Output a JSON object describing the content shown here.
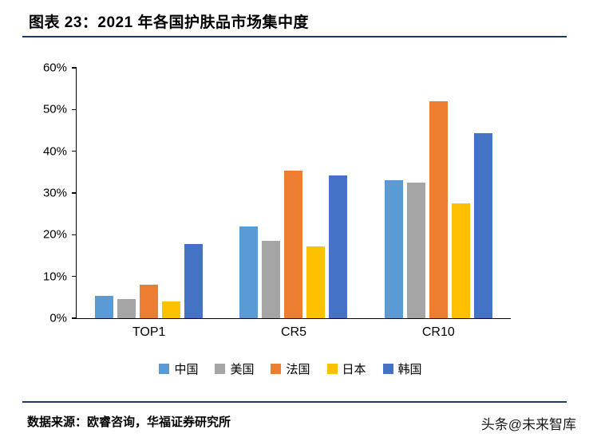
{
  "page": {
    "title": "图表 23：2021 年各国护肤品市场集中度",
    "source_label": "数据来源：",
    "source_text": "欧睿咨询，华福证券研究所",
    "watermark": "头条@未来智库"
  },
  "colors": {
    "rule_navy": "#1F3864",
    "axis": "#000000",
    "background": "#FFFFFF"
  },
  "chart_data": {
    "type": "bar",
    "title": "2021 年各国护肤品市场集中度",
    "categories": [
      "TOP1",
      "CR5",
      "CR10"
    ],
    "series": [
      {
        "name": "中国",
        "color": "#5B9BD5",
        "values": [
          5.3,
          22.0,
          33.0
        ]
      },
      {
        "name": "美国",
        "color": "#A5A5A5",
        "values": [
          4.6,
          18.5,
          32.4
        ]
      },
      {
        "name": "法国",
        "color": "#ED7D31",
        "values": [
          8.0,
          35.4,
          52.0
        ]
      },
      {
        "name": "日本",
        "color": "#FFC000",
        "values": [
          4.0,
          17.2,
          27.6
        ]
      },
      {
        "name": "韩国",
        "color": "#4472C4",
        "values": [
          17.7,
          34.3,
          44.3
        ]
      }
    ],
    "ylabel": "",
    "xlabel": "",
    "ylim": [
      0,
      60
    ],
    "y_ticks": [
      "0%",
      "10%",
      "20%",
      "30%",
      "40%",
      "50%",
      "60%"
    ],
    "unit": "%",
    "grid": false,
    "legend_position": "bottom"
  }
}
